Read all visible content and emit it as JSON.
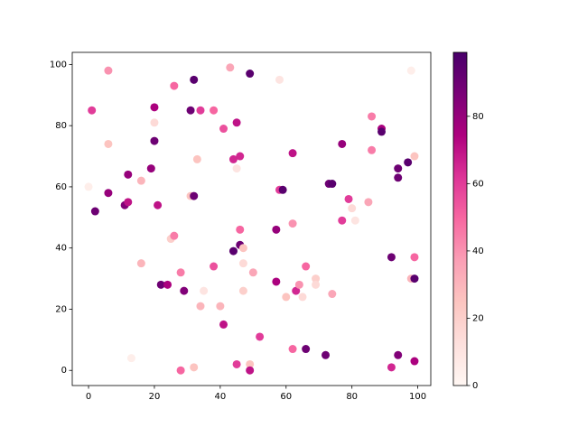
{
  "chart_data": {
    "type": "scatter",
    "x": [
      0,
      1,
      2,
      6,
      6,
      6,
      11,
      12,
      12,
      13,
      16,
      16,
      19,
      20,
      20,
      20,
      21,
      22,
      24,
      25,
      26,
      26,
      28,
      28,
      29,
      31,
      31,
      32,
      32,
      32,
      33,
      34,
      34,
      35,
      38,
      38,
      40,
      41,
      41,
      43,
      44,
      44,
      45,
      45,
      45,
      46,
      46,
      46,
      47,
      47,
      47,
      49,
      49,
      49,
      50,
      52,
      58,
      57,
      57,
      58,
      59,
      60,
      62,
      62,
      62,
      63,
      64,
      65,
      66,
      66,
      69,
      69,
      72,
      73,
      74,
      74,
      77,
      77,
      79,
      80,
      81,
      85,
      86,
      86,
      89,
      89,
      92,
      92,
      94,
      94,
      94,
      97,
      98,
      98,
      99,
      99,
      99,
      99
    ],
    "y": [
      60,
      85,
      52,
      98,
      74,
      58,
      54,
      55,
      64,
      4,
      35,
      62,
      66,
      86,
      81,
      75,
      54,
      28,
      28,
      43,
      44,
      93,
      32,
      0,
      26,
      85,
      57,
      57,
      95,
      1,
      69,
      85,
      21,
      26,
      85,
      34,
      21,
      79,
      15,
      99,
      69,
      39,
      81,
      66,
      2,
      46,
      70,
      41,
      40,
      35,
      26,
      97,
      2,
      0,
      32,
      11,
      95,
      46,
      29,
      59,
      59,
      24,
      71,
      48,
      7,
      26,
      28,
      24,
      34,
      7,
      30,
      28,
      5,
      61,
      61,
      25,
      74,
      49,
      56,
      53,
      49,
      55,
      83,
      72,
      79,
      78,
      37,
      1,
      66,
      63,
      5,
      68,
      98,
      30,
      70,
      37,
      30,
      3
    ],
    "c": [
      5,
      60,
      90,
      40,
      25,
      80,
      85,
      70,
      80,
      5,
      30,
      30,
      80,
      75,
      15,
      90,
      70,
      90,
      75,
      20,
      45,
      50,
      45,
      50,
      85,
      90,
      25,
      90,
      95,
      25,
      25,
      60,
      30,
      10,
      50,
      55,
      30,
      55,
      70,
      35,
      65,
      95,
      70,
      10,
      60,
      50,
      65,
      90,
      25,
      15,
      20,
      95,
      25,
      70,
      35,
      60,
      10,
      80,
      75,
      60,
      95,
      25,
      70,
      40,
      50,
      65,
      40,
      15,
      50,
      90,
      20,
      15,
      90,
      90,
      95,
      35,
      80,
      60,
      60,
      15,
      10,
      35,
      45,
      45,
      75,
      95,
      90,
      65,
      90,
      90,
      85,
      95,
      5,
      30,
      25,
      50,
      95,
      75
    ],
    "colormap": [
      "#fff7f3",
      "#fde0dd",
      "#fcc5c0",
      "#fa9fb5",
      "#f768a1",
      "#dd3497",
      "#ae017e",
      "#7a0177",
      "#49006a"
    ],
    "clim": [
      0,
      99
    ],
    "cticks": [
      0,
      20,
      40,
      60,
      80
    ],
    "xlim": [
      -4.95,
      103.95
    ],
    "xticks": [
      0,
      20,
      40,
      60,
      80,
      100
    ],
    "ylim": [
      -4.95,
      103.95
    ],
    "yticks": [
      0,
      20,
      40,
      60,
      80,
      100
    ]
  }
}
